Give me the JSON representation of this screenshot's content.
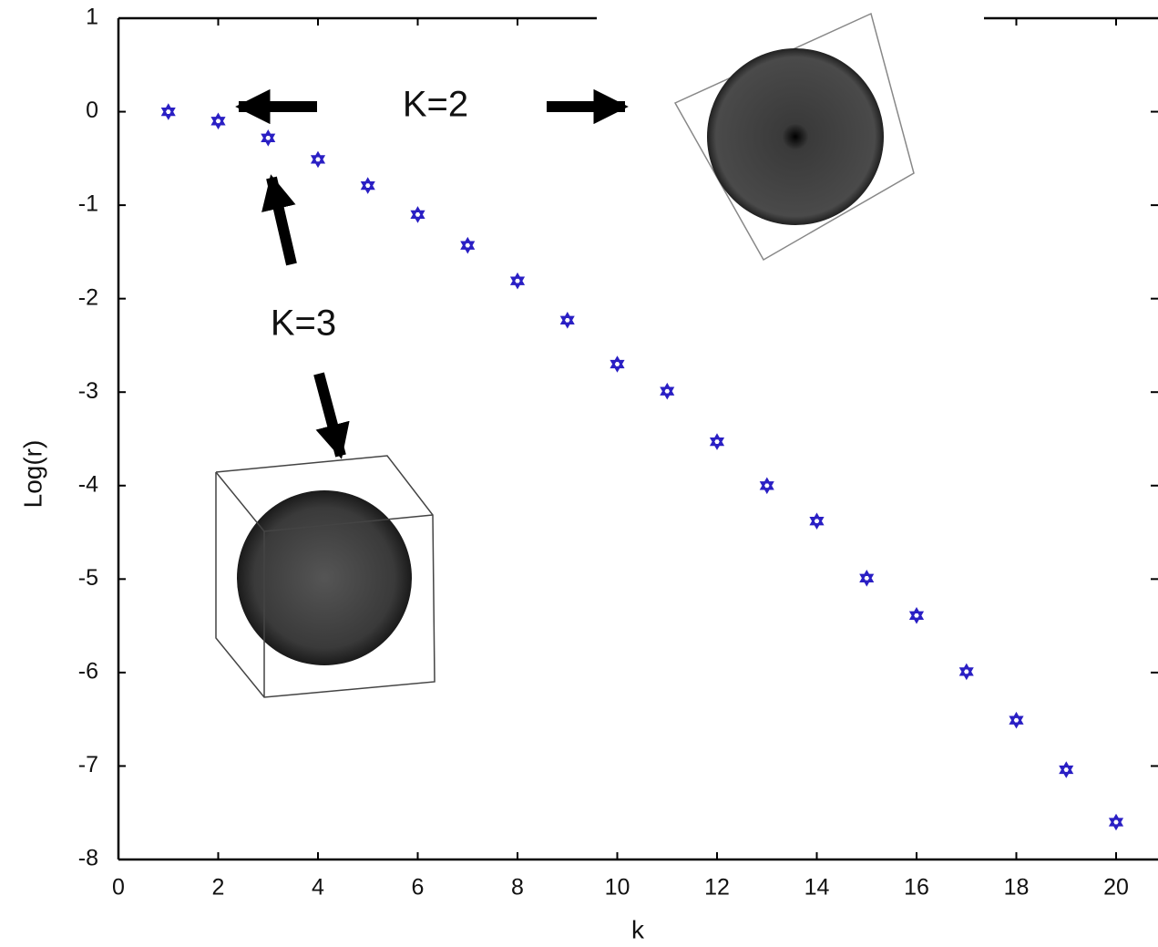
{
  "chart_data": {
    "type": "scatter",
    "x_label": "k",
    "y_label": "Log(r)",
    "x": [
      1,
      2,
      3,
      4,
      5,
      6,
      7,
      8,
      9,
      10,
      11,
      12,
      13,
      14,
      15,
      16,
      17,
      18,
      19,
      20
    ],
    "values": [
      0.0,
      -0.1,
      -0.28,
      -0.51,
      -0.79,
      -1.1,
      -1.43,
      -1.81,
      -2.23,
      -2.7,
      -2.99,
      -3.53,
      -4.0,
      -4.38,
      -4.99,
      -5.39,
      -5.99,
      -6.51,
      -7.04,
      -7.6
    ],
    "color": "#2a1fc4",
    "xlim": [
      0,
      20.8
    ],
    "ylim": [
      -8,
      1
    ],
    "xticks": [
      0,
      2,
      4,
      6,
      8,
      10,
      12,
      14,
      16,
      18,
      20
    ],
    "yticks": [
      1,
      0,
      -1,
      -2,
      -3,
      -4,
      -5,
      -6,
      -7,
      -8
    ],
    "annotations": [
      "K=2",
      "K=3"
    ]
  }
}
